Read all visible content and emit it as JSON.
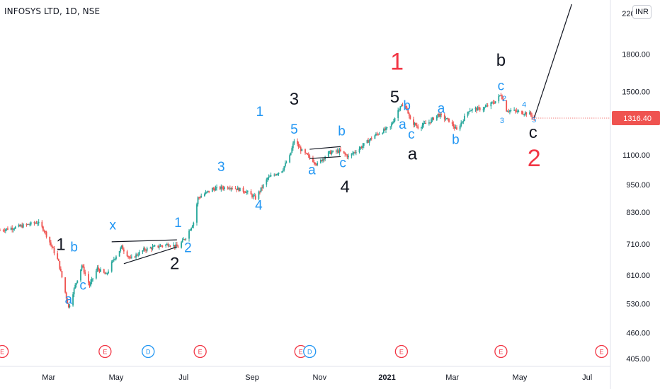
{
  "header": {
    "title": "INFOSYS LTD, 1D, NSE",
    "currency": "INR"
  },
  "chart_data": {
    "type": "candlestick",
    "symbol": "INFOSYS LTD",
    "interval": "1D",
    "exchange": "NSE",
    "y_scale": "log",
    "y_ticks": [
      2200,
      1800,
      1500,
      1316.4,
      1100,
      950,
      830,
      710,
      610,
      530,
      460,
      405
    ],
    "y_tick_labels": [
      "2200.00",
      "1800.00",
      "1500.00",
      "1316.40",
      "1100.00",
      "950.00",
      "830.00",
      "710.00",
      "610.00",
      "530.00",
      "460.00",
      "405.00"
    ],
    "ylim": [
      390,
      2300
    ],
    "last_price": 1316.4,
    "last_price_label": "1316.40",
    "x_labels": [
      "Mar",
      "May",
      "Jul",
      "Sep",
      "Nov",
      "2021",
      "Mar",
      "May",
      "Jul"
    ],
    "x_label_dates": [
      "2020-03-01",
      "2020-05-01",
      "2020-07-01",
      "2020-09-01",
      "2020-11-01",
      "2021-01-01",
      "2021-03-01",
      "2021-05-01",
      "2021-07-01"
    ],
    "x_range": [
      "2020-01-17",
      "2021-07-22"
    ],
    "price_path": [
      [
        "2020-01-17",
        760
      ],
      [
        "2020-02-05",
        775
      ],
      [
        "2020-02-20",
        790
      ],
      [
        "2020-02-26",
        760
      ],
      [
        "2020-03-04",
        700
      ],
      [
        "2020-03-10",
        650
      ],
      [
        "2020-03-19",
        520
      ],
      [
        "2020-03-23",
        560
      ],
      [
        "2020-03-31",
        640
      ],
      [
        "2020-04-07",
        580
      ],
      [
        "2020-04-14",
        630
      ],
      [
        "2020-04-22",
        610
      ],
      [
        "2020-04-29",
        660
      ],
      [
        "2020-05-06",
        700
      ],
      [
        "2020-05-14",
        660
      ],
      [
        "2020-05-26",
        690
      ],
      [
        "2020-06-05",
        700
      ],
      [
        "2020-06-18",
        710
      ],
      [
        "2020-06-26",
        700
      ],
      [
        "2020-07-03",
        735
      ],
      [
        "2020-07-10",
        790
      ],
      [
        "2020-07-14",
        890
      ],
      [
        "2020-07-27",
        930
      ],
      [
        "2020-08-12",
        940
      ],
      [
        "2020-08-26",
        920
      ],
      [
        "2020-09-04",
        890
      ],
      [
        "2020-09-15",
        980
      ],
      [
        "2020-09-28",
        1020
      ],
      [
        "2020-10-05",
        1090
      ],
      [
        "2020-10-09",
        1180
      ],
      [
        "2020-10-16",
        1120
      ],
      [
        "2020-10-30",
        1050
      ],
      [
        "2020-11-09",
        1110
      ],
      [
        "2020-11-19",
        1120
      ],
      [
        "2020-11-27",
        1090
      ],
      [
        "2020-12-08",
        1140
      ],
      [
        "2020-12-21",
        1210
      ],
      [
        "2021-01-04",
        1260
      ],
      [
        "2021-01-13",
        1400
      ],
      [
        "2021-01-19",
        1380
      ],
      [
        "2021-01-22",
        1300
      ],
      [
        "2021-01-29",
        1260
      ],
      [
        "2021-02-08",
        1290
      ],
      [
        "2021-02-16",
        1340
      ],
      [
        "2021-02-26",
        1300
      ],
      [
        "2021-03-05",
        1240
      ],
      [
        "2021-03-16",
        1370
      ],
      [
        "2021-03-29",
        1380
      ],
      [
        "2021-04-09",
        1430
      ],
      [
        "2021-04-14",
        1480
      ],
      [
        "2021-04-19",
        1370
      ],
      [
        "2021-04-28",
        1360
      ],
      [
        "2021-05-10",
        1345
      ],
      [
        "2021-05-14",
        1316.4
      ]
    ],
    "projection_line": [
      [
        "2021-05-14",
        1316.4
      ],
      [
        "2021-06-17",
        2300
      ]
    ],
    "trend_lines": [
      {
        "from": [
          "2020-04-27",
          718
        ],
        "to": [
          "2020-06-25",
          725
        ]
      },
      {
        "from": [
          "2020-05-08",
          645
        ],
        "to": [
          "2020-06-25",
          700
        ]
      },
      {
        "from": [
          "2020-10-23",
          1130
        ],
        "to": [
          "2020-11-20",
          1145
        ]
      },
      {
        "from": [
          "2020-10-23",
          1080
        ],
        "to": [
          "2020-11-20",
          1090
        ]
      }
    ],
    "wave_labels": [
      {
        "text": "1",
        "date": "2020-03-12",
        "price": 690,
        "color": "black",
        "size": "large"
      },
      {
        "text": "b",
        "date": "2020-03-24",
        "price": 685,
        "color": "blue",
        "size": "medium"
      },
      {
        "text": "a",
        "date": "2020-03-19",
        "price": 530,
        "color": "blue",
        "size": "medium"
      },
      {
        "text": "c",
        "date": "2020-04-01",
        "price": 568,
        "color": "blue",
        "size": "medium"
      },
      {
        "text": "x",
        "date": "2020-04-28",
        "price": 762,
        "color": "blue",
        "size": "medium"
      },
      {
        "text": "1",
        "date": "2020-06-26",
        "price": 772,
        "color": "blue",
        "size": "medium"
      },
      {
        "text": "2",
        "date": "2020-06-23",
        "price": 628,
        "color": "black",
        "size": "large"
      },
      {
        "text": "2",
        "date": "2020-07-05",
        "price": 683,
        "color": "blue",
        "size": "medium"
      },
      {
        "text": "3",
        "date": "2020-08-04",
        "price": 1015,
        "color": "blue",
        "size": "medium"
      },
      {
        "text": "4",
        "date": "2020-09-07",
        "price": 840,
        "color": "blue",
        "size": "medium"
      },
      {
        "text": "1",
        "date": "2020-09-08",
        "price": 1330,
        "color": "blue",
        "size": "medium"
      },
      {
        "text": "3",
        "date": "2020-10-09",
        "price": 1405,
        "color": "black",
        "size": "large"
      },
      {
        "text": "5",
        "date": "2020-10-09",
        "price": 1220,
        "color": "blue",
        "size": "medium"
      },
      {
        "text": "a",
        "date": "2020-10-25",
        "price": 1000,
        "color": "blue",
        "size": "medium"
      },
      {
        "text": "b",
        "date": "2020-11-21",
        "price": 1210,
        "color": "blue",
        "size": "medium"
      },
      {
        "text": "c",
        "date": "2020-11-22",
        "price": 1035,
        "color": "blue",
        "size": "medium"
      },
      {
        "text": "4",
        "date": "2020-11-24",
        "price": 915,
        "color": "black",
        "size": "large"
      },
      {
        "text": "1",
        "date": "2021-01-10",
        "price": 1670,
        "color": "red",
        "size": "xlarge"
      },
      {
        "text": "5",
        "date": "2021-01-08",
        "price": 1420,
        "color": "black",
        "size": "large"
      },
      {
        "text": "b",
        "date": "2021-01-19",
        "price": 1370,
        "color": "blue",
        "size": "medium"
      },
      {
        "text": "a",
        "date": "2021-01-15",
        "price": 1250,
        "color": "blue",
        "size": "medium"
      },
      {
        "text": "c",
        "date": "2021-01-23",
        "price": 1190,
        "color": "blue",
        "size": "medium"
      },
      {
        "text": "a",
        "date": "2021-01-24",
        "price": 1075,
        "color": "black",
        "size": "large"
      },
      {
        "text": "a",
        "date": "2021-02-19",
        "price": 1350,
        "color": "blue",
        "size": "medium"
      },
      {
        "text": "b",
        "date": "2021-03-04",
        "price": 1160,
        "color": "blue",
        "size": "medium"
      },
      {
        "text": "b",
        "date": "2021-04-14",
        "price": 1700,
        "color": "black",
        "size": "large"
      },
      {
        "text": "c",
        "date": "2021-04-14",
        "price": 1510,
        "color": "blue",
        "size": "medium"
      },
      {
        "text": "2",
        "date": "2021-04-17",
        "price": 1430,
        "color": "blue",
        "size": "small"
      },
      {
        "text": "3",
        "date": "2021-04-15",
        "price": 1285,
        "color": "blue",
        "size": "small"
      },
      {
        "text": "4",
        "date": "2021-05-05",
        "price": 1390,
        "color": "blue",
        "size": "small"
      },
      {
        "text": "5",
        "date": "2021-05-14",
        "price": 1290,
        "color": "blue",
        "size": "small"
      },
      {
        "text": "c",
        "date": "2021-05-13",
        "price": 1195,
        "color": "black",
        "size": "large"
      },
      {
        "text": "2",
        "date": "2021-05-14",
        "price": 1040,
        "color": "red",
        "size": "xlarge"
      }
    ],
    "event_markers": [
      {
        "label": "E",
        "date": "2020-01-19",
        "kind": "earnings"
      },
      {
        "label": "E",
        "date": "2020-04-21",
        "kind": "earnings"
      },
      {
        "label": "D",
        "date": "2020-05-30",
        "kind": "dividend"
      },
      {
        "label": "E",
        "date": "2020-07-16",
        "kind": "earnings"
      },
      {
        "label": "E",
        "date": "2020-10-15",
        "kind": "earnings"
      },
      {
        "label": "D",
        "date": "2020-10-23",
        "kind": "dividend"
      },
      {
        "label": "E",
        "date": "2021-01-14",
        "kind": "earnings"
      },
      {
        "label": "E",
        "date": "2021-04-14",
        "kind": "earnings"
      },
      {
        "label": "E",
        "date": "2021-07-14",
        "kind": "earnings"
      }
    ],
    "colors": {
      "up": "#26a69a",
      "down": "#ef5350",
      "blue_label": "#2196f3",
      "black_label": "#131722",
      "red_label": "#f23645",
      "price_tag": "#ef5350",
      "earnings": "#f23645",
      "dividend": "#2196f3",
      "axis_text": "#131722",
      "separator": "#e0e3eb"
    }
  }
}
